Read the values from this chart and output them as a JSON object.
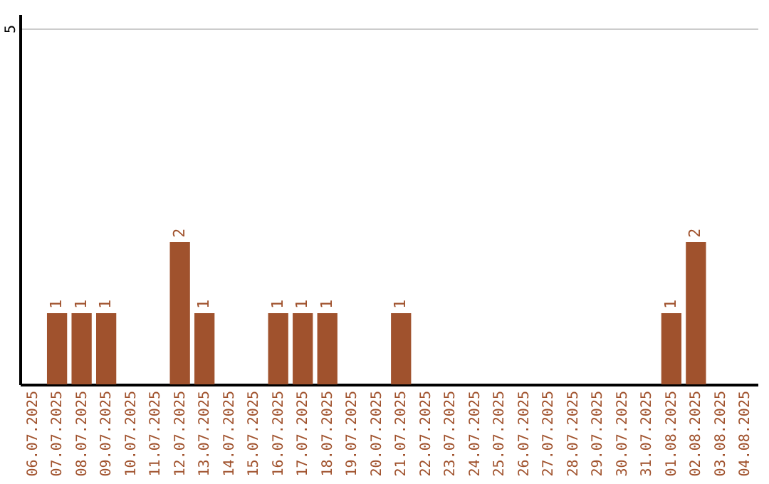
{
  "chart_data": {
    "type": "bar",
    "categories": [
      "06.07.2025",
      "07.07.2025",
      "08.07.2025",
      "09.07.2025",
      "10.07.2025",
      "11.07.2025",
      "12.07.2025",
      "13.07.2025",
      "14.07.2025",
      "15.07.2025",
      "16.07.2025",
      "17.07.2025",
      "18.07.2025",
      "19.07.2025",
      "20.07.2025",
      "21.07.2025",
      "22.07.2025",
      "23.07.2025",
      "24.07.2025",
      "25.07.2025",
      "26.07.2025",
      "27.07.2025",
      "28.07.2025",
      "29.07.2025",
      "30.07.2025",
      "31.07.2025",
      "01.08.2025",
      "02.08.2025",
      "03.08.2025",
      "04.08.2025"
    ],
    "values": [
      null,
      1,
      1,
      1,
      null,
      null,
      2,
      1,
      null,
      null,
      1,
      1,
      1,
      null,
      null,
      1,
      null,
      null,
      null,
      null,
      null,
      null,
      null,
      null,
      null,
      null,
      1,
      2,
      null,
      null
    ],
    "color": "#a0522d",
    "ylim": [
      0,
      5.2
    ],
    "yticks": [
      5
    ],
    "grid": "y",
    "data_labels": true
  }
}
